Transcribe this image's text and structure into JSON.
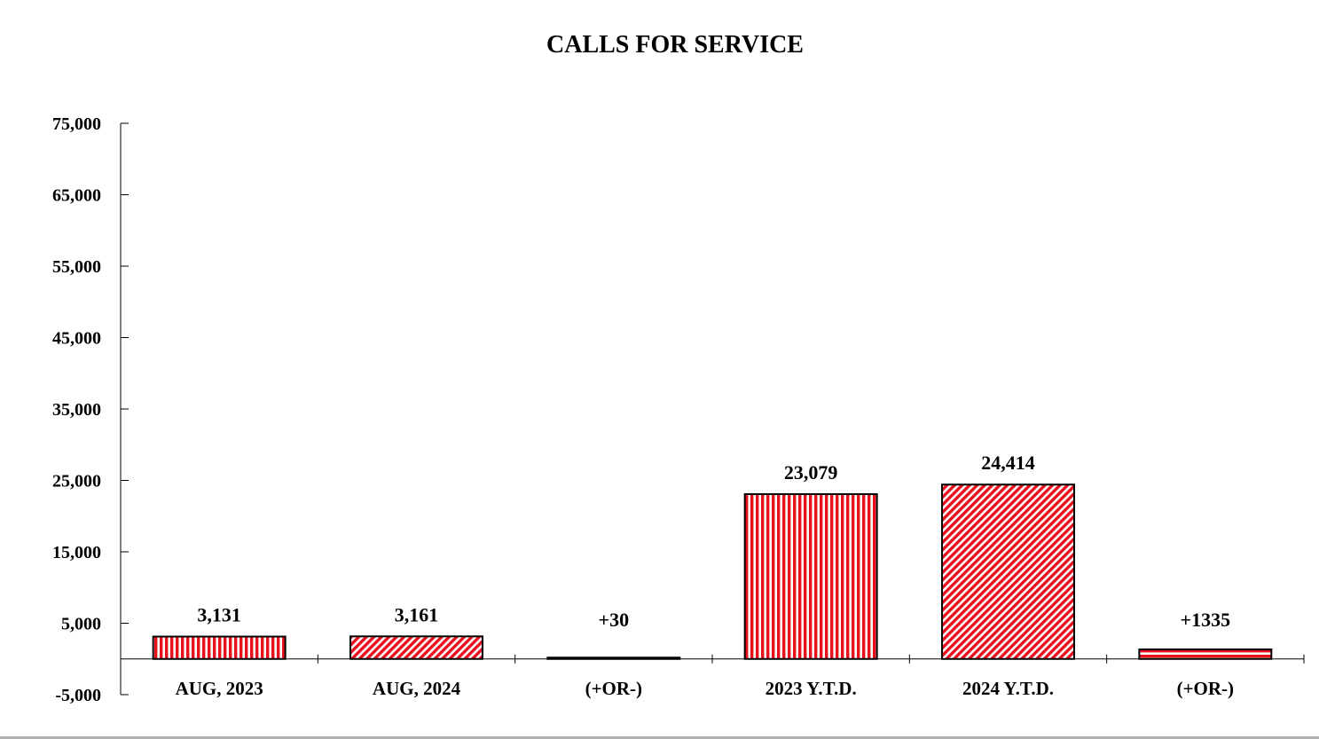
{
  "chart_data": {
    "type": "bar",
    "title": "CALLS FOR SERVICE",
    "xlabel": "",
    "ylabel": "",
    "categories": [
      "AUG, 2023",
      "AUG, 2024",
      "(+OR-)",
      "2023 Y.T.D.",
      "2024 Y.T.D.",
      "(+OR-)"
    ],
    "values": [
      3131,
      3161,
      30,
      23079,
      24414,
      1335
    ],
    "data_labels": [
      "3,131",
      "3,161",
      "+30",
      "23,079",
      "24,414",
      "+1335"
    ],
    "patterns": [
      "vertical",
      "diagonal",
      "vertical",
      "vertical",
      "diagonal",
      "horizontal"
    ],
    "ylim": [
      -5000,
      75000
    ],
    "yticks": [
      75000,
      65000,
      55000,
      45000,
      35000,
      25000,
      15000,
      5000,
      -5000
    ],
    "ytick_labels": [
      "75,000",
      "65,000",
      "55,000",
      "45,000",
      "35,000",
      "25,000",
      "15,000",
      "5,000",
      "-5,000"
    ],
    "grid": false,
    "legend": "none",
    "colors": {
      "bar_fill": "#e8101a",
      "bar_stripe": "#ffffff",
      "bar_outline": "#000000",
      "axis": "#000000"
    }
  }
}
